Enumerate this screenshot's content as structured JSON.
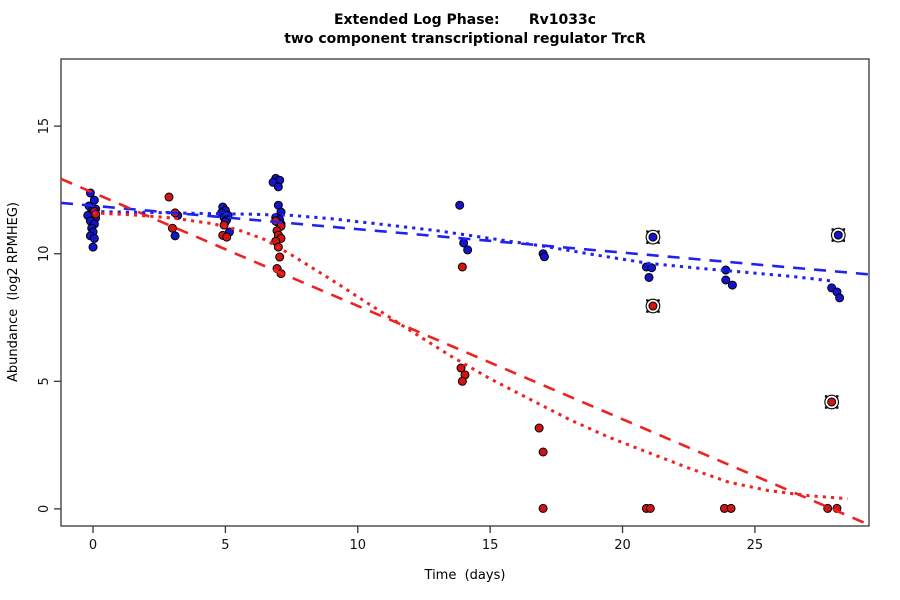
{
  "title": {
    "line1": "Extended Log Phase:      Rv1033c",
    "line2": "two component transcriptional regulator TrcR"
  },
  "chart_data": {
    "type": "scatter",
    "title": "Extended Log Phase:      Rv1033c",
    "subtitle": "two component transcriptional regulator TrcR",
    "xlabel": "Time  (days)",
    "ylabel": "Abundance  (log2 RPMHEG)",
    "xlim": [
      -1.21,
      29.31
    ],
    "ylim": [
      -0.67,
      17.63
    ],
    "xticks": [
      0,
      5,
      10,
      15,
      20,
      25
    ],
    "yticks": [
      0,
      5,
      10,
      15
    ],
    "grid": false,
    "legend": "none",
    "colors": {
      "blue_point": "#1414cc",
      "red_point": "#d41414",
      "blue_line": "#2222ee",
      "red_line": "#ee2222",
      "point_stroke": "#000000",
      "axis": "#363636",
      "highlight_ring": "#111111"
    },
    "series": [
      {
        "name": "blue-series-points",
        "marker": "filled-circle",
        "color_key": "blue_point",
        "points": [
          [
            -0.1,
            12.38
          ],
          [
            0.05,
            12.1
          ],
          [
            -0.15,
            11.87
          ],
          [
            0.1,
            11.75
          ],
          [
            -0.05,
            11.67
          ],
          [
            0,
            11.6
          ],
          [
            -0.2,
            11.5
          ],
          [
            0.1,
            11.4
          ],
          [
            -0.1,
            11.28
          ],
          [
            0.05,
            11.16
          ],
          [
            -0.05,
            11.0
          ],
          [
            0,
            10.85
          ],
          [
            -0.1,
            10.7
          ],
          [
            0.05,
            10.6
          ],
          [
            0,
            10.26
          ],
          [
            3.2,
            11.5
          ],
          [
            3.1,
            10.7
          ],
          [
            4.9,
            11.83
          ],
          [
            5.0,
            11.7
          ],
          [
            4.85,
            11.6
          ],
          [
            5.1,
            11.5
          ],
          [
            4.95,
            11.42
          ],
          [
            5.05,
            11.33
          ],
          [
            5.0,
            11.25
          ],
          [
            5.15,
            10.85
          ],
          [
            6.9,
            12.95
          ],
          [
            7.05,
            12.88
          ],
          [
            6.8,
            12.8
          ],
          [
            7.0,
            12.62
          ],
          [
            7.0,
            11.9
          ],
          [
            7.1,
            11.63
          ],
          [
            6.9,
            11.42
          ],
          [
            7.05,
            11.33
          ],
          [
            6.95,
            11.25
          ],
          [
            7.1,
            11.16
          ],
          [
            13.85,
            11.9
          ],
          [
            14.0,
            10.42
          ],
          [
            14.15,
            10.15
          ],
          [
            17.0,
            10.0
          ],
          [
            17.05,
            9.88
          ],
          [
            20.9,
            9.48
          ],
          [
            21.1,
            9.45
          ],
          [
            21.0,
            9.07
          ],
          [
            23.9,
            9.36
          ],
          [
            23.9,
            8.97
          ],
          [
            24.15,
            8.77
          ],
          [
            27.9,
            8.66
          ],
          [
            28.1,
            8.5
          ],
          [
            28.2,
            8.27
          ]
        ]
      },
      {
        "name": "red-series-points",
        "marker": "filled-circle",
        "color_key": "red_point",
        "points": [
          [
            0.05,
            11.65
          ],
          [
            0.1,
            11.55
          ],
          [
            2.87,
            12.22
          ],
          [
            3.1,
            11.6
          ],
          [
            3.0,
            11.0
          ],
          [
            4.95,
            11.12
          ],
          [
            4.9,
            10.72
          ],
          [
            5.05,
            10.65
          ],
          [
            6.9,
            11.28
          ],
          [
            7.1,
            11.08
          ],
          [
            6.95,
            10.9
          ],
          [
            7.0,
            10.73
          ],
          [
            7.1,
            10.6
          ],
          [
            6.9,
            10.49
          ],
          [
            7.0,
            10.26
          ],
          [
            7.05,
            9.87
          ],
          [
            6.95,
            9.42
          ],
          [
            7.1,
            9.22
          ],
          [
            13.95,
            9.48
          ],
          [
            13.9,
            5.52
          ],
          [
            14.05,
            5.25
          ],
          [
            13.95,
            5.0
          ],
          [
            16.85,
            3.17
          ],
          [
            17.0,
            2.23
          ],
          [
            17.0,
            0.02
          ],
          [
            20.9,
            0.02
          ],
          [
            21.05,
            0.02
          ],
          [
            23.85,
            0.02
          ],
          [
            24.1,
            0.02
          ],
          [
            27.75,
            0.02
          ],
          [
            28.1,
            0.02
          ]
        ]
      },
      {
        "name": "blue-highlighted-points",
        "marker": "circled-dot-with-corner-ticks",
        "color_key": "blue_point",
        "points": [
          [
            21.15,
            10.65
          ],
          [
            28.15,
            10.73
          ]
        ]
      },
      {
        "name": "red-highlighted-points",
        "marker": "circled-dot-with-corner-ticks",
        "color_key": "red_point",
        "points": [
          [
            21.15,
            7.95
          ],
          [
            27.9,
            4.19
          ]
        ]
      }
    ],
    "fits": [
      {
        "name": "blue-linear-fit",
        "style": "dashed",
        "color_key": "blue_line",
        "points": [
          [
            -1.21,
            11.99
          ],
          [
            29.31,
            9.19
          ]
        ]
      },
      {
        "name": "red-linear-fit",
        "style": "dashed",
        "color_key": "red_line",
        "points": [
          [
            -1.21,
            12.93
          ],
          [
            29.31,
            -0.62
          ]
        ]
      },
      {
        "name": "blue-smooth-fit",
        "style": "dotted",
        "color_key": "blue_line",
        "points": [
          [
            0,
            11.65
          ],
          [
            2,
            11.62
          ],
          [
            4,
            11.58
          ],
          [
            6,
            11.55
          ],
          [
            7.5,
            11.5
          ],
          [
            9,
            11.37
          ],
          [
            11,
            11.14
          ],
          [
            13,
            10.9
          ],
          [
            15,
            10.6
          ],
          [
            17,
            10.3
          ],
          [
            19,
            9.95
          ],
          [
            21,
            9.62
          ],
          [
            23,
            9.42
          ],
          [
            25,
            9.24
          ],
          [
            26.5,
            9.1
          ],
          [
            28,
            8.92
          ]
        ]
      },
      {
        "name": "red-smooth-fit",
        "style": "dotted",
        "color_key": "red_line",
        "points": [
          [
            0,
            11.6
          ],
          [
            1.5,
            11.52
          ],
          [
            3,
            11.4
          ],
          [
            4.5,
            11.18
          ],
          [
            5.5,
            10.93
          ],
          [
            6.5,
            10.55
          ],
          [
            7.5,
            9.95
          ],
          [
            9,
            8.98
          ],
          [
            10.5,
            7.98
          ],
          [
            12,
            6.98
          ],
          [
            13.5,
            6.0
          ],
          [
            15,
            5.1
          ],
          [
            16.5,
            4.3
          ],
          [
            18,
            3.5
          ],
          [
            19.5,
            2.8
          ],
          [
            21,
            2.2
          ],
          [
            22.5,
            1.6
          ],
          [
            24,
            1.05
          ],
          [
            25.5,
            0.72
          ],
          [
            27,
            0.52
          ],
          [
            28.5,
            0.4
          ]
        ]
      }
    ]
  }
}
